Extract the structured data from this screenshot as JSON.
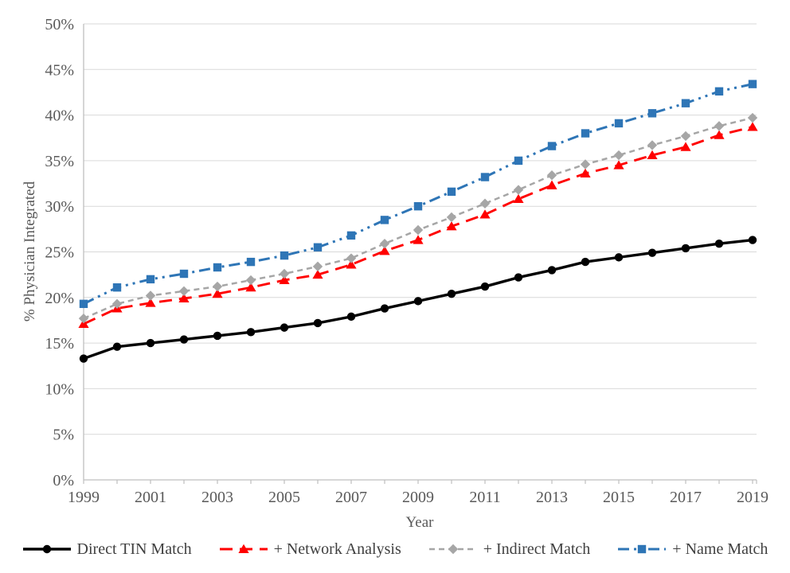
{
  "colors": {
    "background": "#FFFFFF",
    "gridline": "#D9D9D9",
    "axis_line": "#BFBFBF",
    "tick_text": "#595959",
    "legend_text": "#404040"
  },
  "chart_data": {
    "type": "line",
    "title": "",
    "xlabel": "Year",
    "ylabel": "% Physician Integrated",
    "ylim": [
      0,
      50
    ],
    "ytick_step": 5,
    "ytick_format": "percent",
    "grid": true,
    "legend_position": "bottom",
    "x": [
      1999,
      2000,
      2001,
      2002,
      2003,
      2004,
      2005,
      2006,
      2007,
      2008,
      2009,
      2010,
      2011,
      2012,
      2013,
      2014,
      2015,
      2016,
      2017,
      2018,
      2019
    ],
    "x_tick_labels": [
      "1999",
      "2001",
      "2003",
      "2005",
      "2007",
      "2009",
      "2011",
      "2013",
      "2015",
      "2017",
      "2019"
    ],
    "series": [
      {
        "name": "Direct TIN Match",
        "color": "#000000",
        "marker": "circle",
        "dash": "solid",
        "line_width": 3.4,
        "values": [
          13.3,
          14.6,
          15.0,
          15.4,
          15.8,
          16.2,
          16.7,
          17.2,
          17.9,
          18.8,
          19.6,
          20.4,
          21.2,
          22.2,
          23.0,
          23.9,
          24.4,
          24.9,
          25.4,
          25.9,
          26.3
        ]
      },
      {
        "name": "+ Network Analysis",
        "color": "#FF0000",
        "marker": "triangle",
        "dash": "long-dash",
        "line_width": 2.9,
        "values": [
          17.1,
          18.8,
          19.4,
          19.9,
          20.4,
          21.1,
          21.9,
          22.5,
          23.6,
          25.1,
          26.3,
          27.8,
          29.1,
          30.8,
          32.3,
          33.6,
          34.5,
          35.6,
          36.5,
          37.8,
          38.7
        ]
      },
      {
        "name": "+ Indirect Match",
        "color": "#A6A6A6",
        "marker": "diamond",
        "dash": "dash",
        "line_width": 2.5,
        "values": [
          17.7,
          19.3,
          20.2,
          20.7,
          21.2,
          21.9,
          22.6,
          23.4,
          24.3,
          25.9,
          27.4,
          28.8,
          30.3,
          31.8,
          33.4,
          34.6,
          35.6,
          36.7,
          37.7,
          38.8,
          39.7
        ]
      },
      {
        "name": "+ Name Match",
        "color": "#2E75B6",
        "marker": "square",
        "dash": "dash-dot-dot",
        "line_width": 3.0,
        "values": [
          19.3,
          21.1,
          22.0,
          22.6,
          23.3,
          23.9,
          24.6,
          25.5,
          26.8,
          28.5,
          30.0,
          31.6,
          33.2,
          35.0,
          36.6,
          38.0,
          39.1,
          40.2,
          41.3,
          42.6,
          43.4
        ]
      }
    ]
  }
}
